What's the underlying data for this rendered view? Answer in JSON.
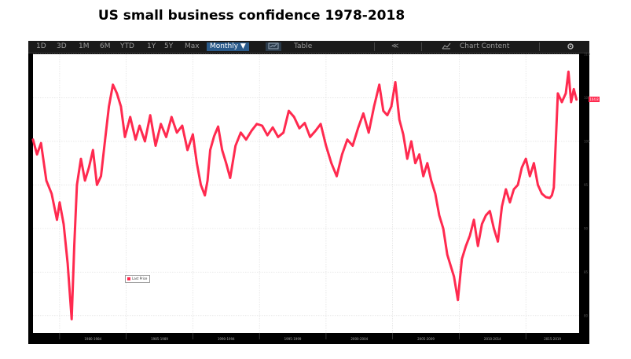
{
  "title": "US small business confidence 1978-2018",
  "toolbar": {
    "ranges": [
      "1D",
      "3D",
      "1M",
      "6M",
      "YTD",
      "1Y",
      "5Y",
      "Max"
    ],
    "period": "Monthly ▼",
    "table": "Table",
    "collapse": "≪",
    "chart_content": "Chart Content"
  },
  "legend": {
    "label": "Last Price"
  },
  "last_value_label": "104.8",
  "colors": {
    "series": "#ff2a4f",
    "frame": "#000000",
    "grid": "#d9d9d9",
    "toolbar_active": "#2a5a8a"
  },
  "chart_data": {
    "type": "line",
    "title": "US small business confidence 1978-2018",
    "xlabel": "",
    "ylabel": "",
    "ylim": [
      78,
      110
    ],
    "yticks": [
      80,
      85,
      90,
      95,
      100,
      105,
      110
    ],
    "xtick_labels": [
      "1980-1984",
      "1985-1989",
      "1990-1994",
      "1995-1999",
      "2000-2004",
      "2005-2009",
      "2010-2014",
      "2015-2019"
    ],
    "legend_position": "bottom-left",
    "grid": true,
    "series": [
      {
        "name": "Last Price",
        "x": [
          1978.0,
          1978.3,
          1978.6,
          1979.0,
          1979.4,
          1979.8,
          1980.0,
          1980.3,
          1980.6,
          1980.9,
          1981.1,
          1981.3,
          1981.6,
          1981.9,
          1982.2,
          1982.5,
          1982.8,
          1983.1,
          1983.4,
          1983.7,
          1984.0,
          1984.3,
          1984.6,
          1984.9,
          1985.3,
          1985.7,
          1986.0,
          1986.4,
          1986.8,
          1987.2,
          1987.6,
          1988.0,
          1988.4,
          1988.8,
          1989.2,
          1989.6,
          1990.0,
          1990.3,
          1990.6,
          1990.9,
          1991.1,
          1991.3,
          1991.6,
          1991.9,
          1992.2,
          1992.5,
          1992.8,
          1993.2,
          1993.6,
          1994.0,
          1994.4,
          1994.8,
          1995.2,
          1995.6,
          1996.0,
          1996.4,
          1996.8,
          1997.2,
          1997.6,
          1998.0,
          1998.4,
          1998.8,
          1999.2,
          1999.6,
          2000.0,
          2000.4,
          2000.8,
          2001.2,
          2001.6,
          2002.0,
          2002.4,
          2002.8,
          2003.2,
          2003.6,
          2004.0,
          2004.3,
          2004.6,
          2004.9,
          2005.2,
          2005.5,
          2005.8,
          2006.1,
          2006.4,
          2006.7,
          2007.0,
          2007.3,
          2007.6,
          2007.9,
          2008.2,
          2008.5,
          2008.8,
          2009.1,
          2009.3,
          2009.6,
          2009.9,
          2010.2,
          2010.5,
          2010.8,
          2011.1,
          2011.4,
          2011.7,
          2012.0,
          2012.3,
          2012.6,
          2012.9,
          2013.2,
          2013.5,
          2013.8,
          2014.1,
          2014.4,
          2014.7,
          2015.0,
          2015.3,
          2015.6,
          2015.9,
          2016.2,
          2016.5,
          2016.8,
          2016.95,
          2017.1,
          2017.4,
          2017.7,
          2018.0,
          2018.2,
          2018.4,
          2018.6,
          2018.8
        ],
        "values": [
          100.2,
          98.5,
          99.8,
          95.5,
          94.0,
          91.0,
          93.0,
          90.5,
          86.0,
          79.6,
          88.0,
          95.0,
          98.0,
          95.5,
          97.0,
          99.0,
          95.0,
          96.0,
          100.0,
          104.0,
          106.5,
          105.5,
          104.0,
          100.5,
          102.8,
          100.2,
          101.8,
          100.0,
          103.0,
          99.5,
          102.0,
          100.5,
          102.8,
          101.0,
          101.8,
          99.0,
          100.8,
          97.5,
          95.0,
          93.8,
          95.5,
          99.0,
          100.6,
          101.7,
          99.0,
          97.5,
          95.8,
          99.5,
          101.0,
          100.2,
          101.2,
          102.0,
          101.8,
          100.7,
          101.6,
          100.5,
          101.0,
          103.5,
          102.8,
          101.5,
          102.1,
          100.5,
          101.2,
          102.0,
          99.5,
          97.5,
          96.0,
          98.5,
          100.2,
          99.5,
          101.5,
          103.2,
          101.0,
          104.0,
          106.5,
          103.5,
          103.0,
          104.0,
          106.8,
          102.5,
          100.8,
          98.0,
          100.0,
          97.5,
          98.5,
          96.0,
          97.5,
          95.5,
          94.0,
          91.5,
          90.0,
          87.0,
          86.0,
          84.5,
          81.8,
          86.5,
          88.0,
          89.2,
          91.0,
          88.0,
          90.5,
          91.5,
          92.0,
          90.0,
          88.5,
          92.5,
          94.5,
          93.0,
          94.5,
          95.0,
          97.0,
          98.0,
          96.0,
          97.5,
          95.0,
          94.0,
          93.6,
          93.5,
          93.8,
          94.7,
          105.5,
          104.5,
          105.5,
          108.0,
          104.5,
          106.0,
          104.8
        ]
      }
    ]
  }
}
